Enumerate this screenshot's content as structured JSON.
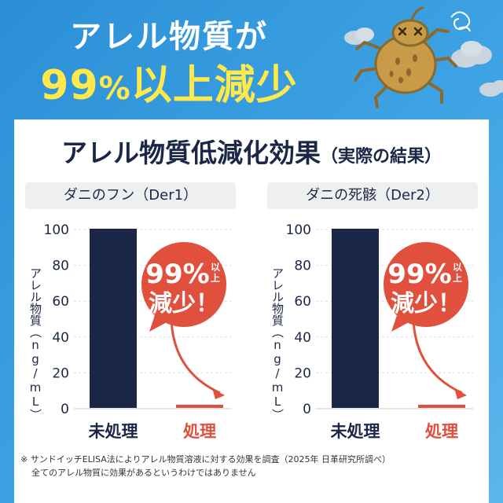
{
  "hero": {
    "line1": "アレル物質が",
    "line2_num": "99",
    "line2_pct": "%",
    "line2_rest": "以上減少"
  },
  "card": {
    "title": "アレル物質低減化効果",
    "title_sub": "（実際の結果）",
    "note_line1": "※ サンドイッチELISA法によりアレル物質溶液に対する効果を調査（2025年 日革研究所調べ）",
    "note_line2": "全てのアレル物質に効果があるというわけではありません"
  },
  "colors": {
    "untreated_bar": "#1b2747",
    "treated_bar": "#e0503c",
    "badge": "#e0503c",
    "title_text": "#1b2747",
    "hero_yellow": "#ffe94a"
  },
  "chart_data": [
    {
      "type": "bar",
      "title": "ダニのフン（Der1）",
      "ylabel": "アレル物質（ng/mL）",
      "categories": [
        "未処理",
        "処理"
      ],
      "values": [
        100,
        1
      ],
      "ylim": [
        0,
        100
      ],
      "yticks": [
        0,
        20,
        40,
        60,
        80,
        100
      ],
      "grid": true,
      "annotation": {
        "big": "99%",
        "small1": "以",
        "small2": "上",
        "line2": "減少！"
      }
    },
    {
      "type": "bar",
      "title": "ダニの死骸（Der2）",
      "ylabel": "アレル物質（ng/mL）",
      "categories": [
        "未処理",
        "処理"
      ],
      "values": [
        100,
        1
      ],
      "ylim": [
        0,
        100
      ],
      "yticks": [
        0,
        20,
        40,
        60,
        80,
        100
      ],
      "grid": true,
      "annotation": {
        "big": "99%",
        "small1": "以",
        "small2": "上",
        "line2": "減少！"
      }
    }
  ]
}
